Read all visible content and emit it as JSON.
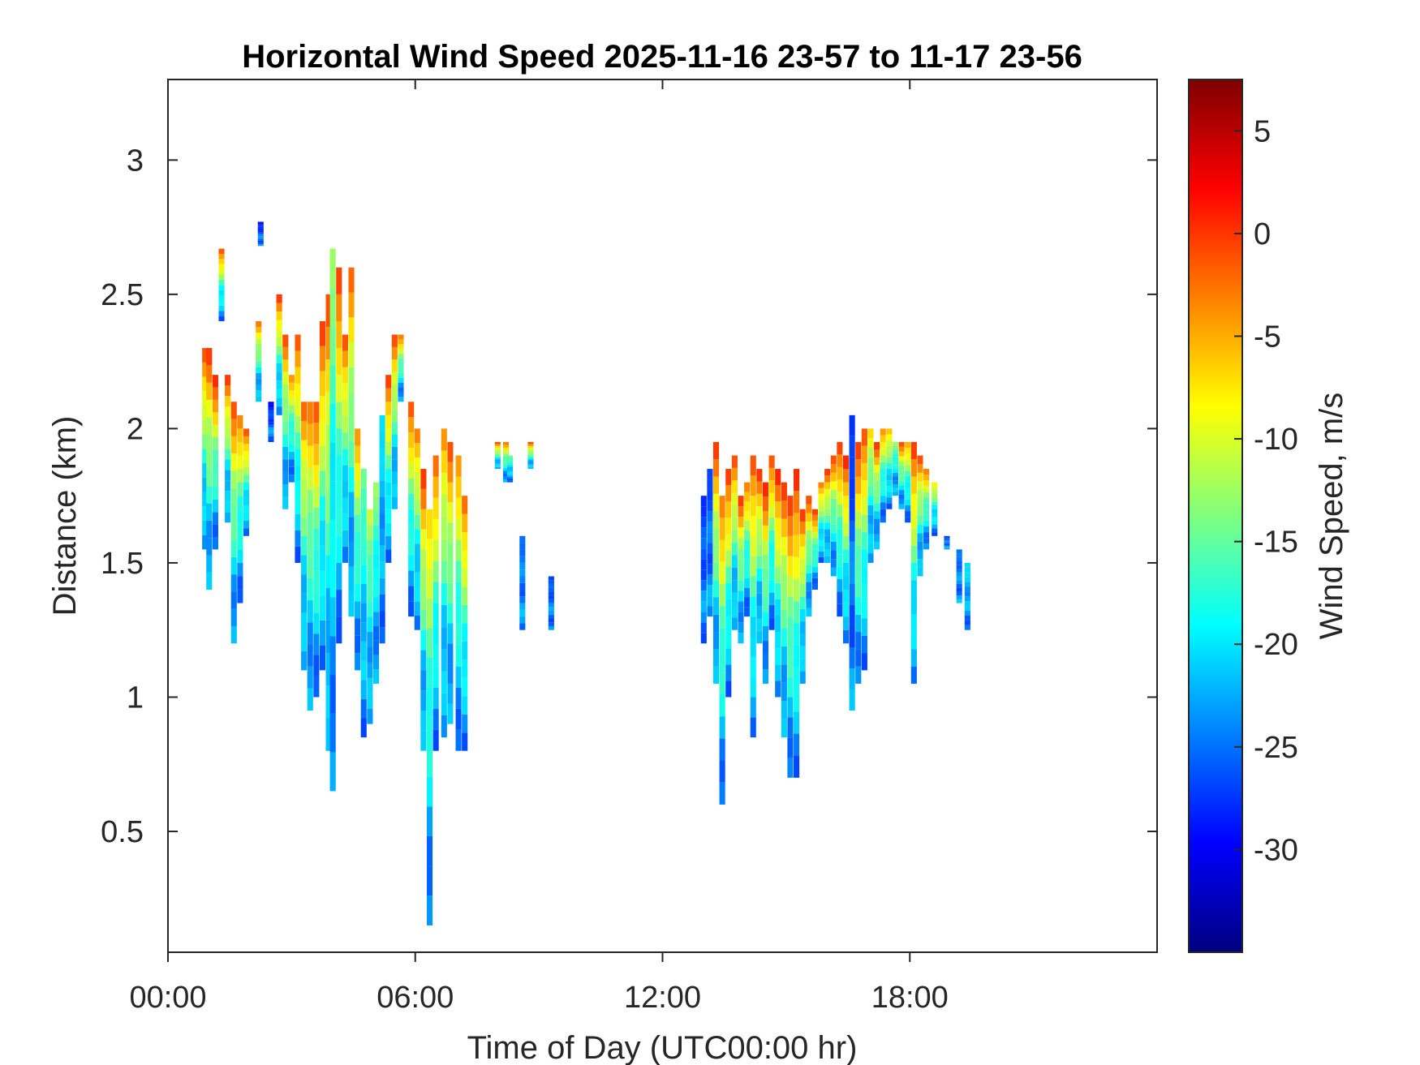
{
  "chart_data": {
    "type": "heatmap",
    "title": "Horizontal Wind Speed 2025-11-16 23-57 to 11-17 23-56",
    "xlabel": "Time of Day (UTC00:00 hr)",
    "ylabel": "Distance (km)",
    "x_unit": "hour",
    "xlim": [
      0,
      24
    ],
    "ylim": [
      0.05,
      3.3
    ],
    "x_ticks": [
      0,
      6,
      12,
      18
    ],
    "x_tick_labels": [
      "00:00",
      "06:00",
      "12:00",
      "18:00"
    ],
    "y_ticks": [
      0.5,
      1,
      1.5,
      2,
      2.5,
      3
    ],
    "y_tick_labels": [
      "0.5",
      "1",
      "1.5",
      "2",
      "2.5",
      "3"
    ],
    "grid": false,
    "colorbar": {
      "label": "Wind Speed, m/s",
      "colormap": "jet",
      "clim": [
        -35,
        7.5
      ],
      "ticks": [
        5,
        0,
        -5,
        -10,
        -15,
        -20,
        -25,
        -30
      ],
      "tick_labels": [
        "5",
        "0",
        "-5",
        "-10",
        "-15",
        "-20",
        "-25",
        "-30"
      ]
    },
    "columns": [
      {
        "x": 0.9,
        "y_bottom": 1.55,
        "y_top": 2.3,
        "top_value": 0
      },
      {
        "x": 1.0,
        "y_bottom": 1.4,
        "y_top": 2.3,
        "top_value": 1
      },
      {
        "x": 1.15,
        "y_bottom": 1.55,
        "y_top": 2.2,
        "top_value": 2
      },
      {
        "x": 1.3,
        "y_bottom": 2.4,
        "y_top": 2.67,
        "top_value": 0
      },
      {
        "x": 1.45,
        "y_bottom": 1.65,
        "y_top": 2.2,
        "top_value": 1
      },
      {
        "x": 1.6,
        "y_bottom": 1.2,
        "y_top": 2.1,
        "top_value": 0
      },
      {
        "x": 1.75,
        "y_bottom": 1.35,
        "y_top": 2.05,
        "top_value": -2
      },
      {
        "x": 1.9,
        "y_bottom": 1.6,
        "y_top": 2.0,
        "top_value": 0
      },
      {
        "x": 2.2,
        "y_bottom": 2.1,
        "y_top": 2.4,
        "top_value": -2
      },
      {
        "x": 2.25,
        "y_bottom": 2.68,
        "y_top": 2.77,
        "top_value": -30
      },
      {
        "x": 2.5,
        "y_bottom": 1.95,
        "y_top": 2.1,
        "top_value": -30
      },
      {
        "x": 2.7,
        "y_bottom": 2.05,
        "y_top": 2.5,
        "top_value": 1
      },
      {
        "x": 2.85,
        "y_bottom": 1.7,
        "y_top": 2.35,
        "top_value": 0
      },
      {
        "x": 3.0,
        "y_bottom": 1.8,
        "y_top": 2.2,
        "top_value": -3
      },
      {
        "x": 3.15,
        "y_bottom": 1.5,
        "y_top": 2.35,
        "top_value": 0
      },
      {
        "x": 3.3,
        "y_bottom": 1.1,
        "y_top": 2.1,
        "top_value": -1
      },
      {
        "x": 3.45,
        "y_bottom": 0.95,
        "y_top": 2.1,
        "top_value": -2
      },
      {
        "x": 3.6,
        "y_bottom": 1.0,
        "y_top": 2.1,
        "top_value": 0
      },
      {
        "x": 3.75,
        "y_bottom": 1.1,
        "y_top": 2.4,
        "top_value": 1
      },
      {
        "x": 3.9,
        "y_bottom": 0.8,
        "y_top": 2.5,
        "top_value": 0
      },
      {
        "x": 4.0,
        "y_bottom": 0.65,
        "y_top": 2.67,
        "top_value": -12
      },
      {
        "x": 4.15,
        "y_bottom": 1.2,
        "y_top": 2.6,
        "top_value": 1
      },
      {
        "x": 4.3,
        "y_bottom": 1.5,
        "y_top": 2.35,
        "top_value": 0
      },
      {
        "x": 4.45,
        "y_bottom": 1.3,
        "y_top": 2.6,
        "top_value": -1
      },
      {
        "x": 4.6,
        "y_bottom": 1.1,
        "y_top": 2.0,
        "top_value": -3
      },
      {
        "x": 4.75,
        "y_bottom": 0.85,
        "y_top": 1.85,
        "top_value": -14
      },
      {
        "x": 4.9,
        "y_bottom": 0.9,
        "y_top": 1.7,
        "top_value": -10
      },
      {
        "x": 5.05,
        "y_bottom": 1.05,
        "y_top": 1.8,
        "top_value": -12
      },
      {
        "x": 5.2,
        "y_bottom": 1.2,
        "y_top": 2.05,
        "top_value": -20
      },
      {
        "x": 5.35,
        "y_bottom": 1.5,
        "y_top": 2.2,
        "top_value": 1
      },
      {
        "x": 5.5,
        "y_bottom": 1.7,
        "y_top": 2.35,
        "top_value": 0
      },
      {
        "x": 5.65,
        "y_bottom": 2.1,
        "y_top": 2.35,
        "top_value": -2
      },
      {
        "x": 5.9,
        "y_bottom": 1.3,
        "y_top": 2.1,
        "top_value": 0
      },
      {
        "x": 6.05,
        "y_bottom": 1.25,
        "y_top": 2.0,
        "top_value": -2
      },
      {
        "x": 6.2,
        "y_bottom": 0.8,
        "y_top": 1.85,
        "top_value": 1
      },
      {
        "x": 6.35,
        "y_bottom": 0.15,
        "y_top": 1.7,
        "top_value": -6
      },
      {
        "x": 6.5,
        "y_bottom": 0.8,
        "y_top": 1.9,
        "top_value": -1
      },
      {
        "x": 6.7,
        "y_bottom": 0.85,
        "y_top": 2.0,
        "top_value": -3
      },
      {
        "x": 6.85,
        "y_bottom": 0.9,
        "y_top": 1.95,
        "top_value": 0
      },
      {
        "x": 7.05,
        "y_bottom": 0.8,
        "y_top": 1.9,
        "top_value": -3
      },
      {
        "x": 7.2,
        "y_bottom": 0.8,
        "y_top": 1.75,
        "top_value": -1
      },
      {
        "x": 8.0,
        "y_bottom": 1.85,
        "y_top": 1.95,
        "top_value": 0
      },
      {
        "x": 8.2,
        "y_bottom": 1.8,
        "y_top": 1.95,
        "top_value": -2
      },
      {
        "x": 8.3,
        "y_bottom": 1.8,
        "y_top": 1.9,
        "top_value": -14
      },
      {
        "x": 8.6,
        "y_bottom": 1.25,
        "y_top": 1.6,
        "top_value": -25
      },
      {
        "x": 8.8,
        "y_bottom": 1.85,
        "y_top": 1.95,
        "top_value": 0
      },
      {
        "x": 9.3,
        "y_bottom": 1.25,
        "y_top": 1.45,
        "top_value": -27
      },
      {
        "x": 13.0,
        "y_bottom": 1.2,
        "y_top": 1.75,
        "top_value": -28
      },
      {
        "x": 13.15,
        "y_bottom": 1.3,
        "y_top": 1.85,
        "top_value": -27
      },
      {
        "x": 13.3,
        "y_bottom": 1.05,
        "y_top": 1.95,
        "top_value": 1
      },
      {
        "x": 13.45,
        "y_bottom": 0.6,
        "y_top": 1.75,
        "top_value": -2
      },
      {
        "x": 13.6,
        "y_bottom": 1.0,
        "y_top": 1.85,
        "top_value": 1
      },
      {
        "x": 13.75,
        "y_bottom": 1.25,
        "y_top": 1.9,
        "top_value": 0
      },
      {
        "x": 13.9,
        "y_bottom": 1.2,
        "y_top": 1.75,
        "top_value": 1
      },
      {
        "x": 14.05,
        "y_bottom": 1.3,
        "y_top": 1.8,
        "top_value": -2
      },
      {
        "x": 14.2,
        "y_bottom": 0.85,
        "y_top": 1.9,
        "top_value": 0
      },
      {
        "x": 14.35,
        "y_bottom": 1.2,
        "y_top": 1.85,
        "top_value": 1
      },
      {
        "x": 14.5,
        "y_bottom": 1.05,
        "y_top": 1.8,
        "top_value": 2
      },
      {
        "x": 14.65,
        "y_bottom": 1.25,
        "y_top": 1.9,
        "top_value": 0
      },
      {
        "x": 14.8,
        "y_bottom": 1.0,
        "y_top": 1.85,
        "top_value": 2
      },
      {
        "x": 14.95,
        "y_bottom": 0.85,
        "y_top": 1.8,
        "top_value": 1
      },
      {
        "x": 15.1,
        "y_bottom": 0.7,
        "y_top": 1.75,
        "top_value": 1
      },
      {
        "x": 15.25,
        "y_bottom": 0.7,
        "y_top": 1.85,
        "top_value": 2
      },
      {
        "x": 15.4,
        "y_bottom": 1.05,
        "y_top": 1.7,
        "top_value": 1
      },
      {
        "x": 15.55,
        "y_bottom": 1.3,
        "y_top": 1.75,
        "top_value": 0
      },
      {
        "x": 15.7,
        "y_bottom": 1.4,
        "y_top": 1.7,
        "top_value": 1
      },
      {
        "x": 15.85,
        "y_bottom": 1.5,
        "y_top": 1.8,
        "top_value": -2
      },
      {
        "x": 16.0,
        "y_bottom": 1.5,
        "y_top": 1.85,
        "top_value": 1
      },
      {
        "x": 16.15,
        "y_bottom": 1.45,
        "y_top": 1.9,
        "top_value": 0
      },
      {
        "x": 16.3,
        "y_bottom": 1.3,
        "y_top": 1.95,
        "top_value": 1
      },
      {
        "x": 16.45,
        "y_bottom": 1.2,
        "y_top": 1.9,
        "top_value": 2
      },
      {
        "x": 16.6,
        "y_bottom": 0.95,
        "y_top": 2.05,
        "top_value": -28
      },
      {
        "x": 16.75,
        "y_bottom": 1.05,
        "y_top": 1.95,
        "top_value": 1
      },
      {
        "x": 16.9,
        "y_bottom": 1.1,
        "y_top": 2.0,
        "top_value": 0
      },
      {
        "x": 17.05,
        "y_bottom": 1.5,
        "y_top": 2.0,
        "top_value": -6
      },
      {
        "x": 17.2,
        "y_bottom": 1.55,
        "y_top": 1.95,
        "top_value": 1
      },
      {
        "x": 17.35,
        "y_bottom": 1.65,
        "y_top": 2.0,
        "top_value": -3
      },
      {
        "x": 17.5,
        "y_bottom": 1.7,
        "y_top": 2.0,
        "top_value": -5
      },
      {
        "x": 17.65,
        "y_bottom": 1.75,
        "y_top": 1.95,
        "top_value": -12
      },
      {
        "x": 17.8,
        "y_bottom": 1.7,
        "y_top": 1.95,
        "top_value": 0
      },
      {
        "x": 17.95,
        "y_bottom": 1.65,
        "y_top": 1.95,
        "top_value": -4
      },
      {
        "x": 18.1,
        "y_bottom": 1.05,
        "y_top": 1.95,
        "top_value": 1
      },
      {
        "x": 18.25,
        "y_bottom": 1.45,
        "y_top": 1.9,
        "top_value": 0
      },
      {
        "x": 18.4,
        "y_bottom": 1.55,
        "y_top": 1.85,
        "top_value": -2
      },
      {
        "x": 18.6,
        "y_bottom": 1.6,
        "y_top": 1.8,
        "top_value": -7
      },
      {
        "x": 18.9,
        "y_bottom": 1.55,
        "y_top": 1.6,
        "top_value": -27
      },
      {
        "x": 19.2,
        "y_bottom": 1.35,
        "y_top": 1.55,
        "top_value": -25
      },
      {
        "x": 19.4,
        "y_bottom": 1.25,
        "y_top": 1.5,
        "top_value": -20
      }
    ]
  }
}
